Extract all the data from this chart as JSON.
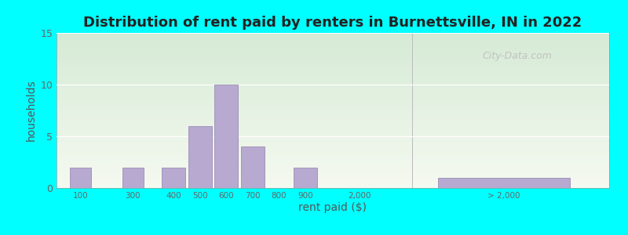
{
  "title": "Distribution of rent paid by renters in Burnettsville, IN in 2022",
  "xlabel": "rent paid ($)",
  "ylabel": "households",
  "bar_color": "#b8a9d0",
  "bar_edge_color": "#9080b0",
  "background_color": "#00ffff",
  "ylim": [
    0,
    15
  ],
  "yticks": [
    0,
    5,
    10,
    15
  ],
  "values": [
    2,
    2,
    2,
    6,
    10,
    4,
    0,
    2,
    1
  ],
  "disp_left": [
    0.5,
    2.5,
    4.0,
    5.0,
    6.0,
    7.0,
    8.0,
    9.0,
    14.5
  ],
  "disp_width": [
    0.8,
    0.8,
    0.9,
    0.9,
    0.9,
    0.9,
    0.9,
    0.9,
    5.0
  ],
  "xlim": [
    0,
    21
  ],
  "xtick_pos": [
    0.9,
    2.9,
    4.45,
    5.45,
    6.45,
    7.45,
    8.45,
    9.45,
    11.5,
    17.0
  ],
  "xtick_labels": [
    "100",
    "300",
    "400",
    "500",
    "600",
    "700",
    "800",
    "900",
    "2,000",
    "> 2,000"
  ],
  "vline_x": 13.5,
  "watermark": "City-Data.com",
  "title_fontsize": 13,
  "axis_label_fontsize": 10,
  "grid_color": "#ccddcc",
  "grad_top": "#f5f9f0",
  "grad_bottom": "#d5ead5"
}
